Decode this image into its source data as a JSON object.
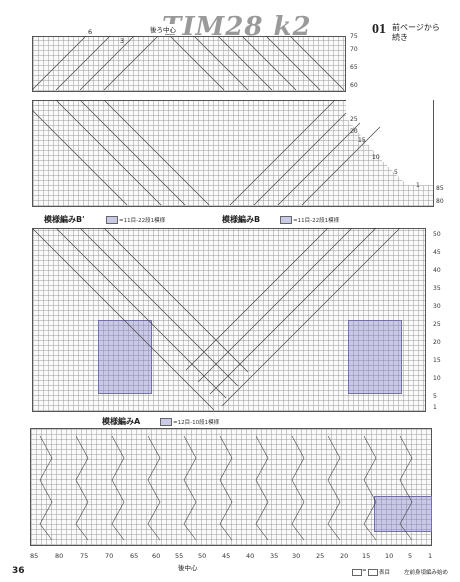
{
  "watermark": "TIM28 k2",
  "header": {
    "number": "01",
    "note_line1": "前ページから",
    "note_line2": "続き"
  },
  "top_labels": {
    "back_center": "後ろ中心",
    "side_marker": "6",
    "three": "3"
  },
  "top_right_rows": [
    "75",
    "70",
    "65",
    "60"
  ],
  "mid_right_rows": [
    "25",
    "20",
    "15",
    "10",
    "5",
    "1",
    "85",
    "80"
  ],
  "patterns": {
    "b_prime": {
      "label": "模様編みB'",
      "legend": "=11目-22段1模様"
    },
    "b": {
      "label": "模様編みB",
      "legend": "=11目-22段1模様"
    },
    "a": {
      "label": "模様編みA",
      "legend": "=12目-10段1模様"
    }
  },
  "big_right_rows": [
    "50",
    "45",
    "40",
    "35",
    "30",
    "25",
    "20",
    "15",
    "10",
    "5",
    "1"
  ],
  "bottom_cols": [
    "85",
    "80",
    "75",
    "70",
    "65",
    "60",
    "55",
    "50",
    "45",
    "40",
    "35",
    "30",
    "25",
    "20",
    "15",
    "10",
    "5",
    "1"
  ],
  "bottom_center_label": "後中心",
  "page_number": "36",
  "footer": {
    "legend_text": "=",
    "legend_note": "表目",
    "caption": "左前身頃編み始め"
  },
  "colors": {
    "highlight": "#8a8ad0",
    "grid": "#9a9a9a"
  }
}
